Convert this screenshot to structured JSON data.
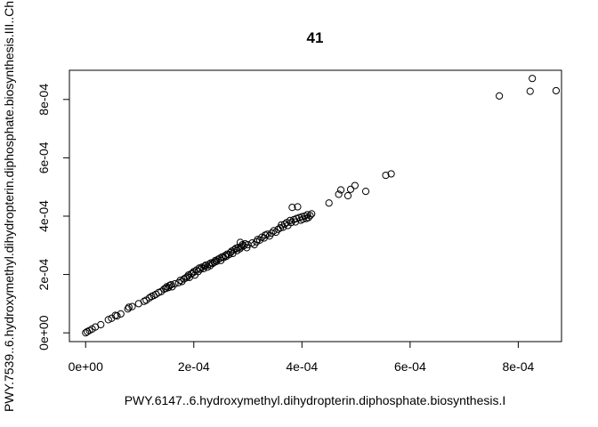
{
  "chart_data": {
    "type": "scatter",
    "title": "41",
    "xlabel": "PWY.6147..6.hydroxymethyl.dihydropterin.diphosphate.biosynthesis.I",
    "ylabel": "PWY.7539..6.hydroxymethyl.dihydropterin.diphosphate.biosynthesis.III..Ch",
    "xlim": [
      -3e-05,
      0.00088
    ],
    "ylim": [
      -3e-05,
      0.0009
    ],
    "x_ticks": [
      0,
      0.0002,
      0.0004,
      0.0006,
      0.0008
    ],
    "x_tick_labels": [
      "0e+00",
      "2e-04",
      "4e-04",
      "6e-04",
      "8e-04"
    ],
    "y_ticks": [
      0,
      0.0002,
      0.0004,
      0.0006,
      0.0008
    ],
    "y_tick_labels": [
      "0e+00",
      "2e-04",
      "4e-04",
      "6e-04",
      "8e-04"
    ],
    "grid": false,
    "marker": "open-circle",
    "color": "#000000",
    "points": [
      [
        0.0,
        0.0
      ],
      [
        3e-06,
        4e-06
      ],
      [
        7e-06,
        8e-06
      ],
      [
        1.2e-05,
        1.3e-05
      ],
      [
        1.8e-05,
        2e-05
      ],
      [
        2.8e-05,
        2.8e-05
      ],
      [
        4.2e-05,
        4.5e-05
      ],
      [
        4.8e-05,
        5e-05
      ],
      [
        5.5e-05,
        6e-05
      ],
      [
        5.8e-05,
        5.8e-05
      ],
      [
        6.5e-05,
        6.5e-05
      ],
      [
        7.8e-05,
        8.2e-05
      ],
      [
        8e-05,
        8.8e-05
      ],
      [
        8.6e-05,
        9e-05
      ],
      [
        9.8e-05,
        0.0001
      ],
      [
        0.000108,
        0.000108
      ],
      [
        0.000112,
        0.000112
      ],
      [
        0.000118,
        0.00012
      ],
      [
        0.000122,
        0.000125
      ],
      [
        0.000126,
        0.000128
      ],
      [
        0.00013,
        0.000132
      ],
      [
        0.000135,
        0.000138
      ],
      [
        0.00014,
        0.000142
      ],
      [
        0.000145,
        0.00015
      ],
      [
        0.000148,
        0.000152
      ],
      [
        0.00015,
        0.000158
      ],
      [
        0.000153,
        0.000155
      ],
      [
        0.000155,
        0.000162
      ],
      [
        0.000158,
        0.000165
      ],
      [
        0.00016,
        0.000158
      ],
      [
        0.000165,
        0.000168
      ],
      [
        0.000172,
        0.000172
      ],
      [
        0.000175,
        0.00018
      ],
      [
        0.000178,
        0.000176
      ],
      [
        0.000182,
        0.000185
      ],
      [
        0.000185,
        0.000188
      ],
      [
        0.000188,
        0.000192
      ],
      [
        0.00019,
        0.000198
      ],
      [
        0.000192,
        0.00019
      ],
      [
        0.000195,
        0.000202
      ],
      [
        0.000198,
        0.000205
      ],
      [
        0.0002,
        0.00021
      ],
      [
        0.000202,
        0.000198
      ],
      [
        0.000205,
        0.000215
      ],
      [
        0.000208,
        0.00021
      ],
      [
        0.00021,
        0.000222
      ],
      [
        0.000212,
        0.000218
      ],
      [
        0.000215,
        0.000225
      ],
      [
        0.000218,
        0.00022
      ],
      [
        0.00022,
        0.000228
      ],
      [
        0.000222,
        0.000232
      ],
      [
        0.000225,
        0.000225
      ],
      [
        0.000228,
        0.000235
      ],
      [
        0.00023,
        0.00023
      ],
      [
        0.000232,
        0.00024
      ],
      [
        0.000235,
        0.000238
      ],
      [
        0.000238,
        0.000242
      ],
      [
        0.00024,
        0.000248
      ],
      [
        0.000242,
        0.000245
      ],
      [
        0.000245,
        0.000252
      ],
      [
        0.000248,
        0.000255
      ],
      [
        0.00025,
        0.000248
      ],
      [
        0.000252,
        0.00026
      ],
      [
        0.000255,
        0.000258
      ],
      [
        0.000258,
        0.000265
      ],
      [
        0.00026,
        0.000262
      ],
      [
        0.000262,
        0.00027
      ],
      [
        0.000265,
        0.000268
      ],
      [
        0.000268,
        0.000275
      ],
      [
        0.00027,
        0.00028
      ],
      [
        0.000272,
        0.000272
      ],
      [
        0.000275,
        0.000285
      ],
      [
        0.000278,
        0.00029
      ],
      [
        0.00028,
        0.000282
      ],
      [
        0.000282,
        0.000292
      ],
      [
        0.000285,
        0.000288
      ],
      [
        0.000286,
        0.00031
      ],
      [
        0.000288,
        0.000295
      ],
      [
        0.00029,
        0.000302
      ],
      [
        0.000292,
        0.000298
      ],
      [
        0.000295,
        0.000305
      ],
      [
        0.000298,
        0.000292
      ],
      [
        0.0003,
        0.000302
      ],
      [
        0.000308,
        0.000308
      ],
      [
        0.000312,
        0.000302
      ],
      [
        0.000316,
        0.000312
      ],
      [
        0.000318,
        0.00032
      ],
      [
        0.000322,
        0.000318
      ],
      [
        0.000326,
        0.000328
      ],
      [
        0.00033,
        0.000325
      ],
      [
        0.000332,
        0.000335
      ],
      [
        0.000336,
        0.000338
      ],
      [
        0.00034,
        0.000332
      ],
      [
        0.000344,
        0.000342
      ],
      [
        0.000348,
        0.00035
      ],
      [
        0.000352,
        0.000345
      ],
      [
        0.000356,
        0.000355
      ],
      [
        0.00036,
        0.00036
      ],
      [
        0.000362,
        0.00037
      ],
      [
        0.000365,
        0.000362
      ],
      [
        0.000368,
        0.000372
      ],
      [
        0.000372,
        0.000378
      ],
      [
        0.000374,
        0.000368
      ],
      [
        0.000378,
        0.000385
      ],
      [
        0.00038,
        0.000378
      ],
      [
        0.000382,
        0.00043
      ],
      [
        0.000385,
        0.000388
      ],
      [
        0.000388,
        0.00038
      ],
      [
        0.00039,
        0.000392
      ],
      [
        0.000392,
        0.000432
      ],
      [
        0.000395,
        0.000395
      ],
      [
        0.000398,
        0.000386
      ],
      [
        0.0004,
        0.000398
      ],
      [
        0.000402,
        0.00039
      ],
      [
        0.000405,
        0.0004
      ],
      [
        0.000408,
        0.000392
      ],
      [
        0.00041,
        0.000405
      ],
      [
        0.000412,
        0.000395
      ],
      [
        0.000415,
        0.000402
      ],
      [
        0.000418,
        0.000408
      ],
      [
        0.00045,
        0.000445
      ],
      [
        0.000468,
        0.000475
      ],
      [
        0.000472,
        0.00049
      ],
      [
        0.000485,
        0.00047
      ],
      [
        0.00049,
        0.000492
      ],
      [
        0.000498,
        0.000505
      ],
      [
        0.000518,
        0.000485
      ],
      [
        0.000555,
        0.00054
      ],
      [
        0.000565,
        0.000545
      ],
      [
        0.000765,
        0.000812
      ],
      [
        0.000822,
        0.000828
      ],
      [
        0.000826,
        0.000872
      ],
      [
        0.00087,
        0.00083
      ]
    ]
  }
}
